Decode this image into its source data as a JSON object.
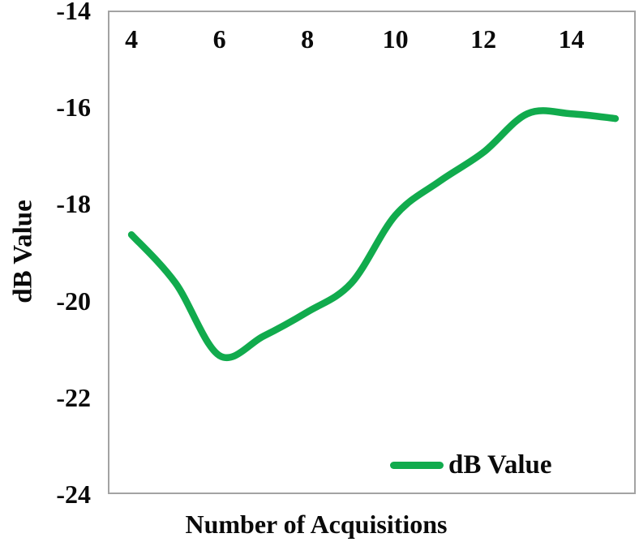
{
  "chart_data": {
    "type": "line",
    "smooth": true,
    "title": "",
    "xlabel": "Number of Acquisitions",
    "ylabel": "dB Value",
    "x": [
      4,
      5,
      6,
      7,
      8,
      9,
      10,
      11,
      12,
      13,
      14,
      15
    ],
    "series": [
      {
        "name": "dB Value",
        "color": "#11ab4d",
        "values": [
          -18.6,
          -19.6,
          -21.1,
          -20.7,
          -20.2,
          -19.6,
          -18.2,
          -17.5,
          -16.9,
          -16.1,
          -16.1,
          -16.2
        ]
      }
    ],
    "xticks": [
      4,
      6,
      8,
      10,
      12,
      14
    ],
    "yticks": [
      -14,
      -16,
      -18,
      -20,
      -22,
      -24
    ],
    "xlim": [
      3.5,
      15.5
    ],
    "ylim": [
      -24,
      -14
    ],
    "grid": false,
    "xtick_label_position": "inside-top",
    "legend": {
      "label": "dB Value",
      "position": "inside-bottom-right"
    }
  },
  "colors": {
    "line_green": "#11ab4d",
    "plot_border": "#a3a3a3",
    "text": "#0a0a0a",
    "background": "#ffffff"
  }
}
